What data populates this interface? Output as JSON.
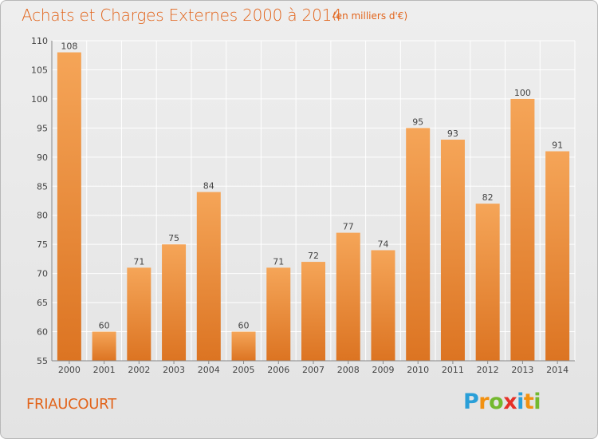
{
  "title": "Achats et Charges Externes 2000 à 2014",
  "subtitle": "(en milliers d'€)",
  "commune": "FRIAUCOURT",
  "logo": {
    "letters": [
      "P",
      "r",
      "o",
      "x",
      "i",
      "t",
      "i"
    ],
    "colors": [
      "#2a9fd8",
      "#f29111",
      "#74b92f",
      "#e53027",
      "#2a9fd8",
      "#f29111",
      "#74b92f"
    ]
  },
  "colors": {
    "accent": "#e2641b",
    "bar_light": "#f5a558",
    "bar_dark": "#dc7422",
    "grid": "#ffffff",
    "axis_text": "#444444"
  },
  "chart_data": {
    "type": "bar",
    "categories": [
      "2000",
      "2001",
      "2002",
      "2003",
      "2004",
      "2005",
      "2006",
      "2007",
      "2008",
      "2009",
      "2010",
      "2011",
      "2012",
      "2013",
      "2014"
    ],
    "values": [
      108,
      60,
      71,
      75,
      84,
      60,
      71,
      72,
      77,
      74,
      95,
      93,
      82,
      100,
      91
    ],
    "ylim": [
      55,
      110
    ],
    "yticks": [
      55,
      60,
      65,
      70,
      75,
      80,
      85,
      90,
      95,
      100,
      105,
      110
    ],
    "grid": true,
    "xlabel": "",
    "ylabel": ""
  }
}
